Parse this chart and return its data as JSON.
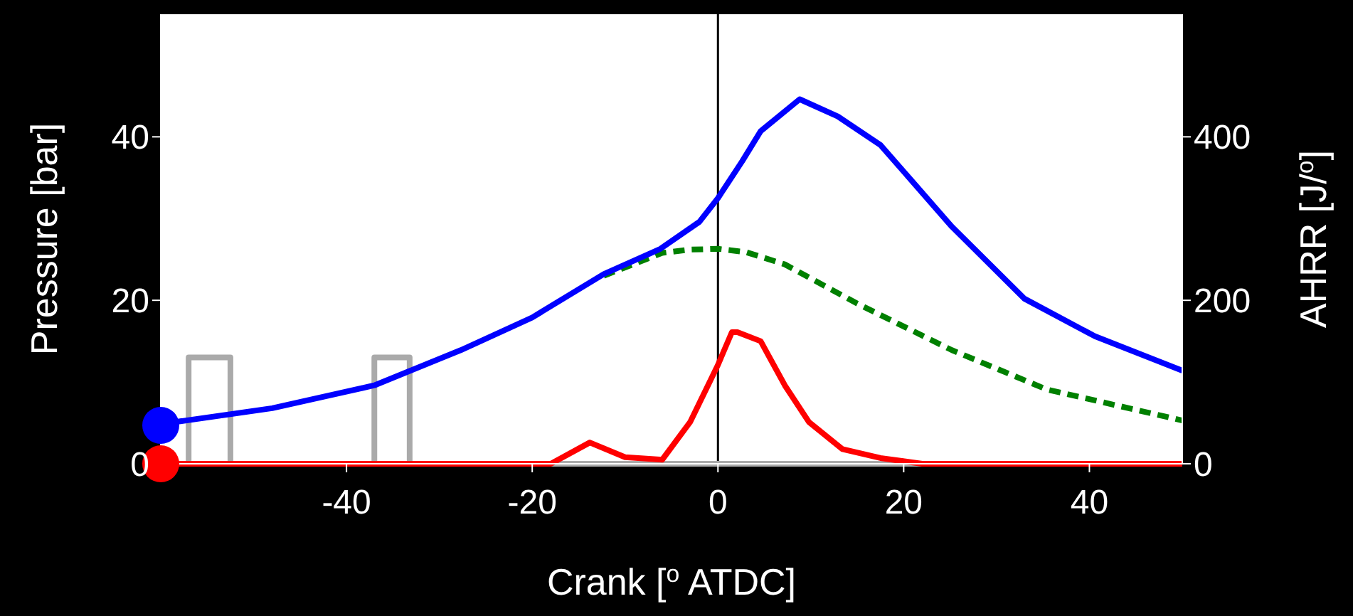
{
  "chart_data": {
    "type": "line",
    "xlabel": "Crank [$^{o}$ ATDC]",
    "ylabel": "Pressure [bar]",
    "y2label": "AHRR [J/$^{o}$]",
    "xlim": [
      -60,
      50
    ],
    "xticks": [
      -40,
      -20,
      0,
      20,
      40
    ],
    "ylim": [
      0,
      55
    ],
    "yticks": [
      0,
      20,
      40
    ],
    "y2lim": [
      0,
      550
    ],
    "y2ticks": [
      0,
      200,
      400
    ],
    "grid": false,
    "legend": false,
    "ref_lines": [
      {
        "axis": "x",
        "value": 0,
        "color": "#000000"
      }
    ],
    "series": [
      {
        "color": "#aaaaaa",
        "x": [
          -60,
          -57,
          -57,
          -52.5,
          -52.5,
          -37,
          -37,
          -33.2,
          -33.2,
          50
        ],
        "values": [
          0,
          0,
          13,
          13,
          0,
          0,
          13,
          13,
          0,
          0
        ]
      },
      {
        "color": "#008000",
        "line_style": "dashed",
        "x": [
          -12.3,
          -6,
          -3,
          0,
          3,
          7.2,
          15,
          25.2,
          35.4,
          50
        ],
        "values": [
          23,
          25.8,
          26.2,
          26.3,
          25.9,
          24.4,
          19.6,
          13.9,
          9.1,
          5.3
        ]
      },
      {
        "color": "#0000ff",
        "x": [
          -60,
          -58.5,
          -48,
          -37,
          -27.7,
          -20,
          -12.3,
          -6.2,
          -2,
          0,
          2.6,
          4.6,
          8.8,
          12.9,
          17.5,
          25.2,
          33,
          40.6,
          50
        ],
        "values": [
          4.7,
          5.1,
          6.8,
          9.6,
          13.9,
          17.9,
          23.2,
          26.3,
          29.6,
          32.5,
          37,
          40.7,
          44.6,
          42.5,
          39,
          29,
          20.2,
          15.6,
          11.4
        ]
      },
      {
        "axis": "y2",
        "color": "#ff0000",
        "x": [
          -60,
          -18,
          -13.8,
          -10,
          -6,
          -3,
          0,
          1.5,
          2.1,
          4.6,
          7.2,
          9.8,
          13.4,
          17.5,
          22,
          50
        ],
        "values": [
          0,
          0,
          26,
          8,
          5,
          51,
          121,
          161,
          161,
          150,
          96,
          51,
          18,
          7,
          0,
          0
        ]
      },
      {
        "type": "scatter",
        "marker": "circle",
        "color": "#0000ff",
        "x": [
          -60
        ],
        "values": [
          4.7
        ]
      },
      {
        "type": "scatter",
        "marker": "circle",
        "axis": "y2",
        "color": "#ff0000",
        "x": [
          -60
        ],
        "values": [
          0
        ]
      }
    ]
  }
}
